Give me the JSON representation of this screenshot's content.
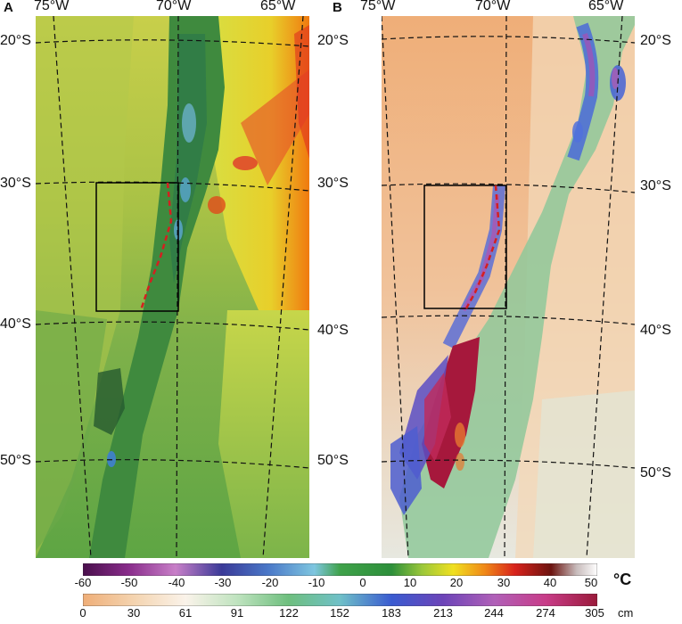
{
  "panels": {
    "a": {
      "letter": "A"
    },
    "b": {
      "letter": "B"
    }
  },
  "longitude_labels": [
    "75°W",
    "70°W",
    "65°W"
  ],
  "latitude_labels": [
    "20°S",
    "30°S",
    "40°S",
    "50°S"
  ],
  "colorbars": {
    "temperature": {
      "ticks": [
        "-60",
        "-50",
        "-40",
        "-30",
        "-20",
        "-10",
        "0",
        "10",
        "20",
        "30",
        "40",
        "50"
      ],
      "unit": "°C"
    },
    "snow": {
      "ticks": [
        "0",
        "30",
        "61",
        "91",
        "122",
        "152",
        "183",
        "213",
        "244",
        "274",
        "305"
      ],
      "unit": "cm"
    }
  },
  "colors": {
    "study_box": "#000000",
    "divide_line": "#d42020",
    "graticule": "#111111"
  }
}
